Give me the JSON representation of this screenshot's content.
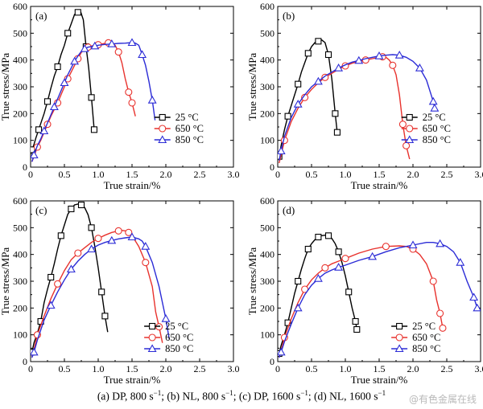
{
  "figure": {
    "caption_parts": [
      "(a) DP, 800 s",
      "−1",
      "; (b) NL, 800 s",
      "−1",
      "; (c) DP,  1600 s",
      "−1",
      "; (d) NL, 1600 s",
      "−1"
    ],
    "watermark": "@有色金属在线"
  },
  "chart_data": [
    {
      "type": "line",
      "panel_label": "(a)",
      "xlabel": "True strain/%",
      "ylabel": "True stress/MPa",
      "xlim": [
        0,
        3.0
      ],
      "ylim": [
        0,
        600
      ],
      "xticks": [
        "0",
        "0.5",
        "1.0",
        "1.5",
        "2.0",
        "2.5",
        "3.0"
      ],
      "yticks": [
        "0",
        "100",
        "200",
        "300",
        "400",
        "500",
        "600"
      ],
      "legend_position": "right-middle",
      "series": [
        {
          "name": "25 °C",
          "marker": "square",
          "color": "#000000",
          "x": [
            0.02,
            0.05,
            0.08,
            0.12,
            0.16,
            0.2,
            0.25,
            0.3,
            0.35,
            0.4,
            0.45,
            0.5,
            0.55,
            0.6,
            0.65,
            0.7,
            0.74,
            0.78,
            0.82,
            0.86,
            0.9,
            0.94
          ],
          "y": [
            65,
            85,
            110,
            140,
            170,
            200,
            245,
            295,
            340,
            375,
            420,
            455,
            500,
            535,
            570,
            578,
            580,
            550,
            450,
            370,
            260,
            140
          ]
        },
        {
          "name": "650 °C",
          "marker": "circle",
          "color": "#e8322d",
          "x": [
            0.02,
            0.05,
            0.1,
            0.15,
            0.2,
            0.25,
            0.3,
            0.35,
            0.4,
            0.45,
            0.5,
            0.55,
            0.6,
            0.65,
            0.7,
            0.75,
            0.8,
            0.85,
            0.9,
            0.95,
            1.0,
            1.05,
            1.1,
            1.15,
            1.2,
            1.25,
            1.3,
            1.35,
            1.4,
            1.45,
            1.5,
            1.55
          ],
          "y": [
            20,
            40,
            75,
            100,
            130,
            160,
            190,
            215,
            240,
            270,
            300,
            330,
            355,
            380,
            405,
            428,
            440,
            448,
            452,
            455,
            457,
            460,
            462,
            464,
            462,
            455,
            430,
            390,
            330,
            280,
            240,
            190
          ]
        },
        {
          "name": "850 °C",
          "marker": "triangle",
          "color": "#2b2bd6",
          "x": [
            0.02,
            0.05,
            0.1,
            0.15,
            0.2,
            0.25,
            0.3,
            0.35,
            0.4,
            0.45,
            0.5,
            0.55,
            0.6,
            0.65,
            0.7,
            0.75,
            0.8,
            0.85,
            0.9,
            0.95,
            1.0,
            1.1,
            1.2,
            1.3,
            1.4,
            1.5,
            1.55,
            1.6,
            1.65,
            1.7,
            1.75,
            1.8,
            1.84
          ],
          "y": [
            20,
            45,
            80,
            105,
            135,
            165,
            195,
            225,
            255,
            285,
            315,
            345,
            370,
            395,
            415,
            432,
            442,
            448,
            450,
            452,
            455,
            458,
            460,
            462,
            463,
            465,
            463,
            455,
            420,
            380,
            320,
            250,
            175
          ]
        }
      ]
    },
    {
      "type": "line",
      "panel_label": "(b)",
      "xlabel": "True strain/%",
      "ylabel": "True stress/MPa",
      "xlim": [
        0,
        3.0
      ],
      "ylim": [
        0,
        600
      ],
      "xticks": [
        "0",
        "0.5",
        "1.0",
        "1.5",
        "2.0",
        "2.5",
        "3.0"
      ],
      "yticks": [
        "0",
        "100",
        "200",
        "300",
        "400",
        "500",
        "600"
      ],
      "legend_position": "right-middle",
      "series": [
        {
          "name": "25 °C",
          "marker": "square",
          "color": "#000000",
          "x": [
            0.02,
            0.05,
            0.1,
            0.15,
            0.2,
            0.25,
            0.3,
            0.35,
            0.4,
            0.45,
            0.5,
            0.55,
            0.6,
            0.65,
            0.7,
            0.75,
            0.8,
            0.85,
            0.88
          ],
          "y": [
            40,
            80,
            140,
            190,
            230,
            270,
            310,
            355,
            390,
            425,
            450,
            465,
            470,
            475,
            465,
            420,
            330,
            200,
            130
          ]
        },
        {
          "name": "650 °C",
          "marker": "circle",
          "color": "#e8322d",
          "x": [
            0.02,
            0.05,
            0.1,
            0.2,
            0.3,
            0.4,
            0.5,
            0.6,
            0.7,
            0.8,
            0.9,
            1.0,
            1.1,
            1.2,
            1.3,
            1.4,
            1.5,
            1.55,
            1.6,
            1.65,
            1.7,
            1.75,
            1.8,
            1.85,
            1.9,
            1.95
          ],
          "y": [
            15,
            45,
            100,
            170,
            220,
            260,
            290,
            315,
            335,
            350,
            365,
            378,
            388,
            395,
            400,
            405,
            410,
            412,
            410,
            400,
            380,
            345,
            270,
            160,
            80,
            30
          ]
        },
        {
          "name": "850 °C",
          "marker": "triangle",
          "color": "#2b2bd6",
          "x": [
            0.02,
            0.05,
            0.1,
            0.2,
            0.3,
            0.4,
            0.5,
            0.6,
            0.7,
            0.8,
            0.9,
            1.0,
            1.1,
            1.2,
            1.3,
            1.4,
            1.5,
            1.6,
            1.7,
            1.8,
            1.9,
            2.0,
            2.1,
            2.2,
            2.3,
            2.32
          ],
          "y": [
            25,
            60,
            115,
            185,
            235,
            270,
            300,
            320,
            340,
            355,
            370,
            382,
            392,
            398,
            405,
            410,
            415,
            418,
            420,
            418,
            410,
            395,
            370,
            325,
            245,
            220
          ]
        }
      ]
    },
    {
      "type": "line",
      "panel_label": "(c)",
      "xlabel": "True strain/%",
      "ylabel": "True stress/MPa",
      "xlim": [
        0,
        3.0
      ],
      "ylim": [
        0,
        600
      ],
      "xticks": [
        "0",
        "0.5",
        "1.0",
        "1.5",
        "2.0",
        "2.5",
        "3.0"
      ],
      "yticks": [
        "0",
        "100",
        "200",
        "300",
        "400",
        "500",
        "600"
      ],
      "legend_position": "right-bottom",
      "series": [
        {
          "name": "25 °C",
          "marker": "square",
          "color": "#000000",
          "x": [
            0.02,
            0.05,
            0.1,
            0.15,
            0.2,
            0.25,
            0.3,
            0.35,
            0.4,
            0.45,
            0.5,
            0.55,
            0.6,
            0.65,
            0.7,
            0.75,
            0.8,
            0.85,
            0.9,
            0.95,
            1.0,
            1.05,
            1.1,
            1.14
          ],
          "y": [
            35,
            70,
            105,
            150,
            220,
            270,
            315,
            365,
            420,
            470,
            510,
            550,
            570,
            585,
            588,
            585,
            575,
            548,
            500,
            430,
            350,
            260,
            170,
            110
          ]
        },
        {
          "name": "650 °C",
          "marker": "circle",
          "color": "#e8322d",
          "x": [
            0.02,
            0.05,
            0.1,
            0.2,
            0.3,
            0.4,
            0.5,
            0.6,
            0.7,
            0.8,
            0.9,
            1.0,
            1.1,
            1.2,
            1.3,
            1.35,
            1.4,
            1.45,
            1.5,
            1.6,
            1.7,
            1.8,
            1.85,
            1.9,
            1.95
          ],
          "y": [
            15,
            45,
            100,
            170,
            235,
            290,
            340,
            380,
            405,
            425,
            445,
            460,
            472,
            482,
            488,
            490,
            488,
            482,
            470,
            430,
            370,
            280,
            185,
            130,
            70
          ]
        },
        {
          "name": "850 °C",
          "marker": "triangle",
          "color": "#2b2bd6",
          "x": [
            0.02,
            0.05,
            0.1,
            0.2,
            0.3,
            0.4,
            0.5,
            0.6,
            0.7,
            0.8,
            0.9,
            1.0,
            1.1,
            1.2,
            1.3,
            1.4,
            1.5,
            1.6,
            1.65,
            1.7,
            1.8,
            1.9,
            2.0,
            2.05
          ],
          "y": [
            15,
            35,
            80,
            155,
            210,
            260,
            305,
            345,
            375,
            400,
            420,
            435,
            445,
            452,
            458,
            462,
            465,
            458,
            450,
            430,
            370,
            280,
            160,
            85
          ]
        }
      ]
    },
    {
      "type": "line",
      "panel_label": "(d)",
      "xlabel": "True strain/%",
      "ylabel": "True stress/MPa",
      "xlim": [
        0,
        3.0
      ],
      "ylim": [
        0,
        600
      ],
      "xticks": [
        "0",
        "0.5",
        "1.0",
        "1.5",
        "2.0",
        "2.5",
        "3.0"
      ],
      "yticks": [
        "0",
        "100",
        "200",
        "300",
        "400",
        "500",
        "600"
      ],
      "legend_position": "right-bottom",
      "series": [
        {
          "name": "25 °C",
          "marker": "square",
          "color": "#000000",
          "x": [
            0.02,
            0.05,
            0.1,
            0.15,
            0.2,
            0.25,
            0.3,
            0.35,
            0.4,
            0.45,
            0.5,
            0.55,
            0.6,
            0.65,
            0.7,
            0.75,
            0.8,
            0.85,
            0.9,
            0.95,
            1.0,
            1.05,
            1.1,
            1.15,
            1.17
          ],
          "y": [
            30,
            60,
            100,
            145,
            200,
            255,
            300,
            345,
            385,
            420,
            440,
            455,
            465,
            470,
            472,
            470,
            460,
            440,
            410,
            370,
            320,
            260,
            200,
            150,
            120
          ]
        },
        {
          "name": "650 °C",
          "marker": "circle",
          "color": "#e8322d",
          "x": [
            0.02,
            0.05,
            0.1,
            0.2,
            0.3,
            0.4,
            0.5,
            0.6,
            0.7,
            0.8,
            0.9,
            1.0,
            1.2,
            1.4,
            1.6,
            1.8,
            1.9,
            2.0,
            2.1,
            2.2,
            2.3,
            2.35,
            2.4,
            2.44
          ],
          "y": [
            15,
            40,
            90,
            160,
            220,
            270,
            305,
            330,
            350,
            365,
            375,
            385,
            405,
            420,
            430,
            432,
            430,
            420,
            400,
            365,
            300,
            230,
            180,
            125
          ]
        },
        {
          "name": "850 °C",
          "marker": "triangle",
          "color": "#2b2bd6",
          "x": [
            0.02,
            0.05,
            0.1,
            0.2,
            0.3,
            0.4,
            0.5,
            0.6,
            0.7,
            0.8,
            0.9,
            1.0,
            1.2,
            1.4,
            1.6,
            1.8,
            2.0,
            2.2,
            2.3,
            2.4,
            2.5,
            2.6,
            2.7,
            2.8,
            2.9,
            2.95
          ],
          "y": [
            15,
            35,
            75,
            140,
            200,
            250,
            285,
            310,
            330,
            342,
            352,
            360,
            378,
            392,
            410,
            425,
            435,
            445,
            445,
            440,
            430,
            410,
            370,
            300,
            240,
            200
          ]
        }
      ]
    }
  ]
}
